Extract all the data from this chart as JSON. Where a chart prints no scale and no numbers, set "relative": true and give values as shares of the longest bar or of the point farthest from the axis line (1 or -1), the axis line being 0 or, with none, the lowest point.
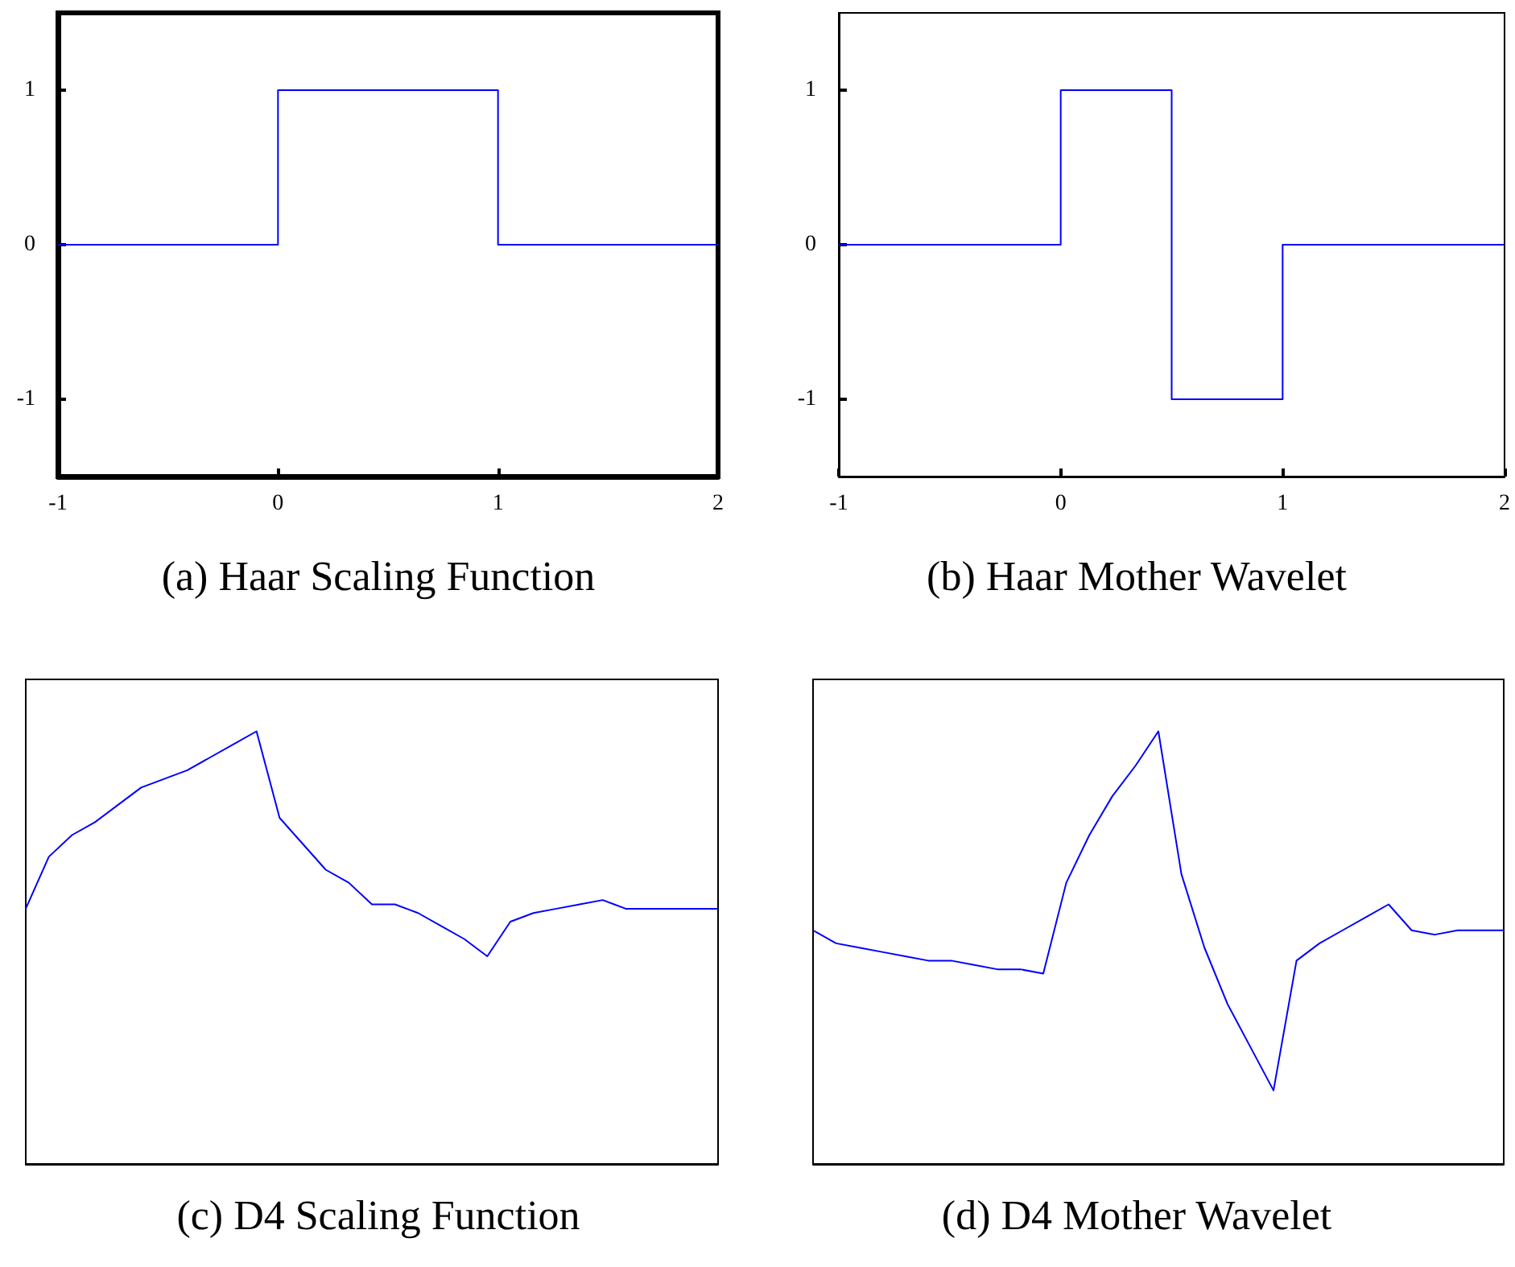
{
  "chart_data": [
    {
      "type": "step",
      "title": "(a) Haar Scaling Function",
      "x": [
        -1,
        0,
        1,
        2
      ],
      "values": [
        0,
        1,
        0,
        0
      ],
      "color": "#0000ff",
      "xlim": [
        -1,
        2
      ],
      "ylim": [
        -1.5,
        1.5
      ],
      "xticks": [
        -1,
        0,
        1,
        2
      ],
      "yticks": [
        -1,
        0,
        1
      ]
    },
    {
      "type": "step",
      "title": "(b) Haar Mother Wavelet",
      "x": [
        -1,
        0,
        0.5,
        1,
        2
      ],
      "values": [
        0,
        1,
        -1,
        0,
        0
      ],
      "color": "#0000ff",
      "xlim": [
        -1,
        2
      ],
      "ylim": [
        -1.5,
        1.5
      ],
      "xticks": [
        -1,
        0,
        1,
        2
      ],
      "yticks": [
        -1,
        0,
        1
      ]
    },
    {
      "type": "line",
      "title": "(c) D4 Scaling Function",
      "relative": true,
      "color": "#0000ff",
      "categories": [
        null,
        null,
        null,
        null,
        null,
        null,
        null,
        null,
        null,
        null,
        null,
        null,
        null,
        null,
        null,
        null,
        null,
        null,
        null,
        null,
        null,
        null,
        null,
        null,
        null,
        null,
        null,
        null,
        null,
        null,
        null
      ],
      "values": [
        0.59,
        0.71,
        0.76,
        0.79,
        0.83,
        0.87,
        0.89,
        0.91,
        0.94,
        0.97,
        1,
        0.8,
        0.74,
        0.68,
        0.65,
        0.6,
        0.6,
        0.58,
        0.55,
        0.52,
        0.48,
        0.56,
        0.58,
        0.59,
        0.6,
        0.61,
        0.59,
        0.59,
        0.59,
        0.59,
        0.59
      ]
    },
    {
      "type": "line",
      "title": "(d) D4 Mother Wavelet",
      "relative": true,
      "color": "#0000ff",
      "categories": [
        null,
        null,
        null,
        null,
        null,
        null,
        null,
        null,
        null,
        null,
        null,
        null,
        null,
        null,
        null,
        null,
        null,
        null,
        null,
        null,
        null,
        null,
        null,
        null,
        null,
        null,
        null,
        null,
        null,
        null,
        null
      ],
      "values": [
        0.54,
        0.51,
        0.5,
        0.49,
        0.48,
        0.47,
        0.47,
        0.46,
        0.45,
        0.45,
        0.44,
        0.65,
        0.76,
        0.85,
        0.92,
        1,
        0.67,
        0.5,
        0.37,
        0.27,
        0.17,
        0.47,
        0.51,
        0.54,
        0.57,
        0.6,
        0.54,
        0.53,
        0.54,
        0.54,
        0.54
      ]
    }
  ]
}
